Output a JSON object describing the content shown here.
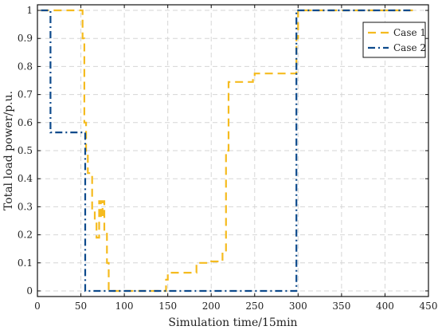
{
  "chart_data": {
    "type": "line",
    "xlabel": "Simulation time/15min",
    "ylabel": "Total load power/p.u.",
    "xlim": [
      0,
      450
    ],
    "ylim": [
      -0.02,
      1.02
    ],
    "xticks": [
      0,
      50,
      100,
      150,
      200,
      250,
      300,
      350,
      400,
      450
    ],
    "yticks": [
      0,
      0.1,
      0.2,
      0.3,
      0.4,
      0.5,
      0.6,
      0.7,
      0.8,
      0.9,
      1
    ],
    "grid": true,
    "legend_position": "top-right",
    "series": [
      {
        "name": "Case 1",
        "color": "#f5bb1f",
        "style": "dashed",
        "x": [
          4,
          52,
          52,
          54,
          54,
          56,
          56,
          58,
          58,
          63,
          63,
          66,
          66,
          68,
          68,
          71,
          71,
          73,
          73,
          75,
          75,
          77,
          77,
          80,
          80,
          82,
          82,
          148,
          148,
          150,
          150,
          183,
          183,
          200,
          200,
          213,
          213,
          217,
          217,
          220,
          220,
          248,
          248,
          250,
          250,
          298,
          298,
          300,
          300,
          432
        ],
        "y": [
          1.0,
          1.0,
          0.9,
          0.9,
          0.6,
          0.6,
          0.49,
          0.49,
          0.42,
          0.42,
          0.29,
          0.29,
          0.25,
          0.25,
          0.19,
          0.19,
          0.32,
          0.32,
          0.26,
          0.26,
          0.32,
          0.32,
          0.21,
          0.21,
          0.1,
          0.1,
          0.0,
          0.0,
          0.04,
          0.04,
          0.065,
          0.065,
          0.1,
          0.1,
          0.105,
          0.105,
          0.14,
          0.14,
          0.5,
          0.5,
          0.745,
          0.745,
          0.765,
          0.765,
          0.775,
          0.775,
          0.9,
          0.9,
          1.0,
          1.0
        ]
      },
      {
        "name": "Case 2",
        "color": "#0d4a8c",
        "style": "dash-dot",
        "x": [
          4,
          15,
          15,
          55,
          55,
          298,
          298,
          432
        ],
        "y": [
          1.0,
          1.0,
          0.565,
          0.565,
          0.0,
          0.0,
          1.0,
          1.0
        ]
      }
    ]
  }
}
